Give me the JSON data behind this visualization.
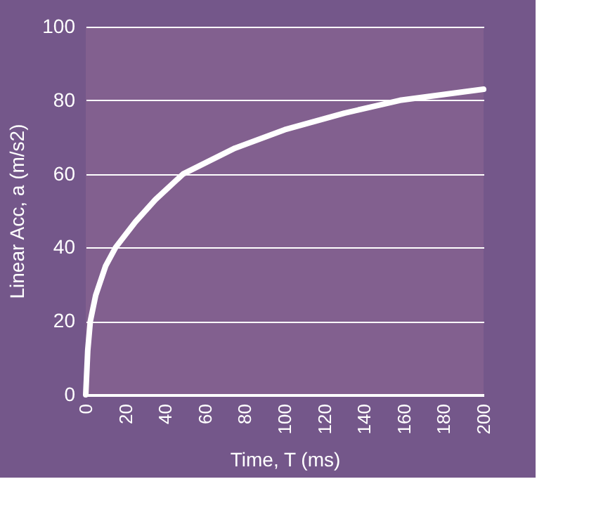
{
  "chart_data": {
    "type": "line",
    "xlabel": "Time, T (ms)",
    "ylabel": "Linear Acc, a  (m/s2)",
    "x": [
      0,
      1,
      2.3,
      5,
      10,
      15,
      25,
      35,
      49,
      75,
      100,
      130,
      158,
      200
    ],
    "series": [
      {
        "color": "#ffffff",
        "values": [
          0,
          12,
          20,
          27,
          35,
          40,
          47,
          53,
          60,
          67,
          72,
          76.5,
          80,
          83
        ]
      }
    ],
    "xlim": [
      0,
      200
    ],
    "xticks": [
      0,
      20,
      40,
      60,
      80,
      100,
      120,
      140,
      160,
      180,
      200
    ],
    "ylim": [
      0,
      100
    ],
    "yticks": [
      0,
      20,
      40,
      60,
      80,
      100
    ],
    "grid": "y",
    "marker": "none",
    "line_style": "solid"
  }
}
